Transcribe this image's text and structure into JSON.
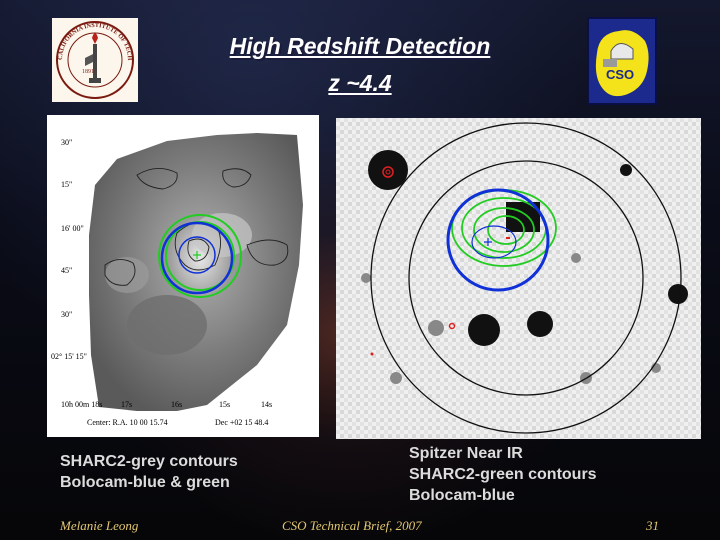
{
  "slide": {
    "title_line1": "High Redshift Detection",
    "title_line2": "z ~4.4"
  },
  "logos": {
    "caltech_ring": "CALIFORNIA INSTITUTE OF TECHNOLOGY",
    "caltech_year": "1891",
    "cso_text": "CSO"
  },
  "left_map": {
    "y_ticks": [
      "30\"",
      "15\"",
      "16' 00\"",
      "45\"",
      "30\"",
      "02° 15' 15\""
    ],
    "x_ticks": [
      "10h 00m 18s",
      "17s",
      "16s",
      "15s",
      "14s"
    ],
    "center_label": "Center: R.A. 10 00 15.74",
    "dec_label": "Dec +02 15 48.4"
  },
  "captions": {
    "left": [
      "SHARC2-grey contours",
      "Bolocam-blue & green"
    ],
    "right": [
      "Spitzer Near IR",
      "SHARC2-green contours",
      "Bolocam-blue"
    ]
  },
  "footer": {
    "author": "Melanie Leong",
    "brief": "CSO Technical Brief, 2007",
    "page": "31"
  }
}
